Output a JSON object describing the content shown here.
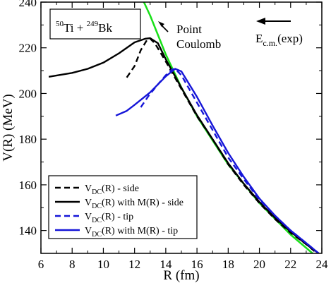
{
  "chart_data": {
    "type": "line",
    "xlabel": "R (fm)",
    "ylabel": "V(R) (MeV)",
    "xlim": [
      6,
      24
    ],
    "ylim": [
      130,
      240
    ],
    "xticks": [
      6,
      8,
      10,
      12,
      14,
      16,
      18,
      20,
      22,
      24
    ],
    "yticks": [
      140,
      160,
      180,
      200,
      220,
      240
    ],
    "reaction": {
      "mass1": "50",
      "elem1": "Ti",
      "plus": " + ",
      "mass2": "249",
      "elem2": "Bk"
    },
    "annotations": {
      "coulomb_line1": "Point",
      "coulomb_line2": "Coulomb",
      "ecm_main": "E",
      "ecm_sub": "c.m.",
      "ecm_rest": "(exp)"
    },
    "legend": {
      "position": "bottom-left",
      "entries": [
        {
          "main": "V",
          "sub": "DC",
          "rest": "(R) - side",
          "color": "#000000",
          "dash": "dashed"
        },
        {
          "main": "V",
          "sub": "DC",
          "rest": "(R) with M(R) - side",
          "color": "#000000",
          "dash": "solid"
        },
        {
          "main": "V",
          "sub": "DC",
          "rest": "(R) - tip",
          "color": "#1515d8",
          "dash": "dashed"
        },
        {
          "main": "V",
          "sub": "DC",
          "rest": "(R) with M(R) - tip",
          "color": "#1515d8",
          "dash": "solid"
        }
      ]
    },
    "series": [
      {
        "key": "point-coulomb",
        "color": "#18e018",
        "dash": "solid",
        "points": [
          [
            12.6,
            240
          ],
          [
            13,
            234.1
          ],
          [
            14,
            217.1
          ],
          [
            15,
            202.6
          ],
          [
            16,
            190
          ],
          [
            18,
            168.9
          ],
          [
            20,
            152
          ],
          [
            22,
            138.2
          ],
          [
            23.7,
            128.3
          ]
        ]
      },
      {
        "key": "vdc-side",
        "color": "#000000",
        "dash": "dashed",
        "points": [
          [
            11.5,
            207
          ],
          [
            12,
            212
          ],
          [
            12.4,
            219
          ],
          [
            12.8,
            223.5
          ],
          [
            13,
            224
          ],
          [
            13.3,
            222
          ],
          [
            14,
            214
          ],
          [
            15,
            202
          ],
          [
            16,
            190
          ],
          [
            17,
            180
          ],
          [
            18,
            169
          ],
          [
            19,
            160
          ],
          [
            20,
            152
          ],
          [
            21,
            145
          ],
          [
            22,
            139
          ],
          [
            23,
            134
          ],
          [
            23.7,
            130
          ]
        ]
      },
      {
        "key": "vdc-mr-side",
        "color": "#000000",
        "dash": "solid",
        "points": [
          [
            6.5,
            207.3
          ],
          [
            8,
            209
          ],
          [
            9,
            210.8
          ],
          [
            10,
            213.5
          ],
          [
            11,
            217.6
          ],
          [
            12,
            222.4
          ],
          [
            12.7,
            224
          ],
          [
            13,
            224.2
          ],
          [
            13.5,
            222
          ],
          [
            14,
            215
          ],
          [
            15,
            202.5
          ],
          [
            16,
            190.5
          ],
          [
            17,
            180
          ],
          [
            18,
            169.5
          ],
          [
            19,
            160.5
          ],
          [
            20,
            152.5
          ],
          [
            21,
            145.5
          ],
          [
            22,
            139.5
          ],
          [
            23,
            134
          ],
          [
            23.8,
            130
          ]
        ]
      },
      {
        "key": "vdc-tip",
        "color": "#1515d8",
        "dash": "dashed",
        "points": [
          [
            12.4,
            194
          ],
          [
            12.9,
            199
          ],
          [
            13.5,
            204
          ],
          [
            14,
            208
          ],
          [
            14.4,
            210.5
          ],
          [
            14.6,
            210.8
          ],
          [
            15,
            208
          ],
          [
            16,
            196
          ],
          [
            17,
            184
          ],
          [
            18,
            172
          ],
          [
            19,
            162.5
          ],
          [
            20,
            153.5
          ],
          [
            21,
            146.5
          ],
          [
            22,
            140
          ],
          [
            23,
            134.5
          ],
          [
            23.8,
            130
          ]
        ]
      },
      {
        "key": "vdc-mr-tip",
        "color": "#1515d8",
        "dash": "solid",
        "points": [
          [
            10.8,
            190.3
          ],
          [
            11.5,
            192.4
          ],
          [
            12,
            195
          ],
          [
            13,
            200.5
          ],
          [
            14,
            207.5
          ],
          [
            14.6,
            210.8
          ],
          [
            15,
            209.7
          ],
          [
            16,
            198.5
          ],
          [
            17,
            186
          ],
          [
            18,
            174
          ],
          [
            19,
            163.5
          ],
          [
            20,
            154
          ],
          [
            21,
            146.5
          ],
          [
            22,
            140
          ],
          [
            23,
            134.5
          ],
          [
            23.8,
            130
          ]
        ]
      }
    ]
  }
}
